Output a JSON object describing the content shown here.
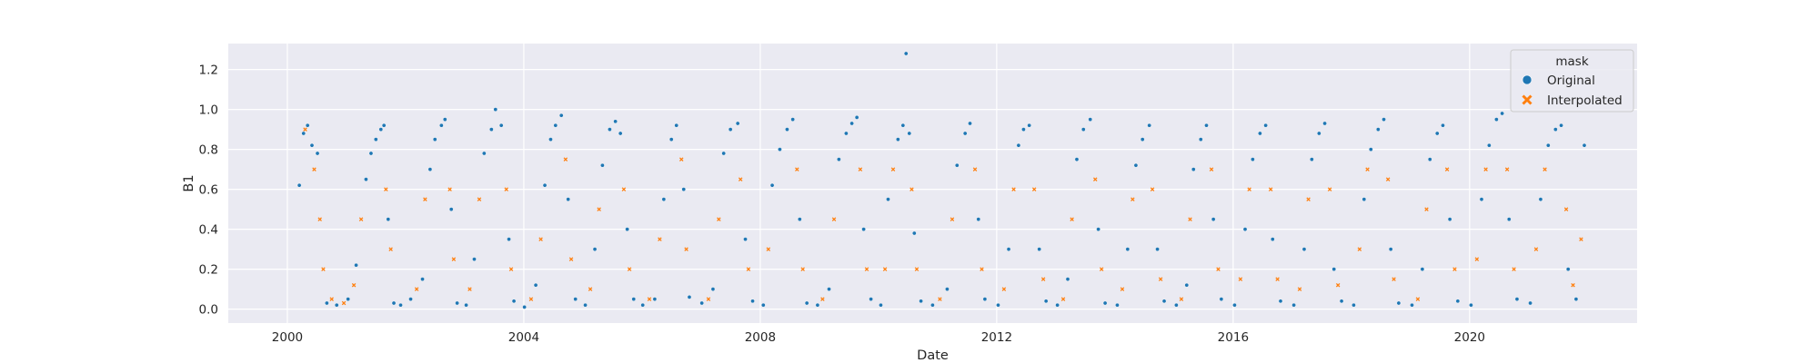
{
  "chart_data": {
    "type": "scatter",
    "xlabel": "Date",
    "ylabel": "B1",
    "x_ticks": [
      "2000",
      "2004",
      "2008",
      "2012",
      "2016",
      "2020"
    ],
    "y_ticks": [
      "0.0",
      "0.2",
      "0.4",
      "0.6",
      "0.8",
      "1.0",
      "1.2"
    ],
    "xlim": [
      "1999-01-01",
      "2022-11-01"
    ],
    "ylim": [
      -0.07,
      1.33
    ],
    "x_range": [
      "2000-03-01",
      "2021-12-15"
    ],
    "grid": true,
    "style": "seaborn-darkgrid",
    "legend": {
      "title": "mask",
      "placement": "top-right",
      "entries": [
        {
          "label": "Original",
          "marker": "circle",
          "color": "#1f77b4"
        },
        {
          "label": "Interpolated",
          "marker": "x",
          "color": "#ff7f0e"
        }
      ]
    },
    "series": [
      {
        "name": "Original",
        "marker": "circle",
        "color": "#1f77b4",
        "description": "seasonal cycle, troughs ~0.02 in winter, peaks ~0.85-0.95 in summer; outlier 1.28 in mid-2010",
        "points": [
          [
            "2000-03-15",
            0.62
          ],
          [
            "2000-04-10",
            0.88
          ],
          [
            "2000-05-05",
            0.92
          ],
          [
            "2000-06-01",
            0.82
          ],
          [
            "2000-07-05",
            0.78
          ],
          [
            "2000-09-01",
            0.03
          ],
          [
            "2000-11-01",
            0.02
          ],
          [
            "2001-01-10",
            0.05
          ],
          [
            "2001-03-01",
            0.22
          ],
          [
            "2001-05-01",
            0.65
          ],
          [
            "2001-06-01",
            0.78
          ],
          [
            "2001-07-01",
            0.85
          ],
          [
            "2001-08-01",
            0.9
          ],
          [
            "2001-08-20",
            0.92
          ],
          [
            "2001-09-15",
            0.45
          ],
          [
            "2001-10-20",
            0.03
          ],
          [
            "2001-12-01",
            0.02
          ],
          [
            "2002-02-01",
            0.05
          ],
          [
            "2002-04-15",
            0.15
          ],
          [
            "2002-06-01",
            0.7
          ],
          [
            "2002-07-01",
            0.85
          ],
          [
            "2002-08-10",
            0.92
          ],
          [
            "2002-09-01",
            0.95
          ],
          [
            "2002-10-10",
            0.5
          ],
          [
            "2002-11-15",
            0.03
          ],
          [
            "2003-01-10",
            0.02
          ],
          [
            "2003-03-01",
            0.25
          ],
          [
            "2003-05-01",
            0.78
          ],
          [
            "2003-06-15",
            0.9
          ],
          [
            "2003-07-10",
            1.0
          ],
          [
            "2003-08-15",
            0.92
          ],
          [
            "2003-10-01",
            0.35
          ],
          [
            "2003-11-01",
            0.04
          ],
          [
            "2004-01-05",
            0.01
          ],
          [
            "2004-03-15",
            0.12
          ],
          [
            "2004-05-10",
            0.62
          ],
          [
            "2004-06-15",
            0.85
          ],
          [
            "2004-07-15",
            0.92
          ],
          [
            "2004-08-20",
            0.97
          ],
          [
            "2004-10-01",
            0.55
          ],
          [
            "2004-11-15",
            0.05
          ],
          [
            "2005-01-15",
            0.02
          ],
          [
            "2005-03-15",
            0.3
          ],
          [
            "2005-05-01",
            0.72
          ],
          [
            "2005-06-15",
            0.9
          ],
          [
            "2005-07-20",
            0.94
          ],
          [
            "2005-08-20",
            0.88
          ],
          [
            "2005-10-01",
            0.4
          ],
          [
            "2005-11-10",
            0.05
          ],
          [
            "2006-01-05",
            0.02
          ],
          [
            "2006-03-20",
            0.05
          ],
          [
            "2006-05-15",
            0.55
          ],
          [
            "2006-07-01",
            0.85
          ],
          [
            "2006-08-01",
            0.92
          ],
          [
            "2006-09-15",
            0.6
          ],
          [
            "2006-10-20",
            0.06
          ],
          [
            "2007-01-05",
            0.03
          ],
          [
            "2007-03-15",
            0.1
          ],
          [
            "2007-05-20",
            0.78
          ],
          [
            "2007-07-01",
            0.9
          ],
          [
            "2007-08-15",
            0.93
          ],
          [
            "2007-10-01",
            0.35
          ],
          [
            "2007-11-15",
            0.04
          ],
          [
            "2008-01-20",
            0.02
          ],
          [
            "2008-03-15",
            0.62
          ],
          [
            "2008-05-01",
            0.8
          ],
          [
            "2008-06-15",
            0.9
          ],
          [
            "2008-07-20",
            0.95
          ],
          [
            "2008-09-01",
            0.45
          ],
          [
            "2008-10-15",
            0.03
          ],
          [
            "2008-12-20",
            0.02
          ],
          [
            "2009-03-01",
            0.1
          ],
          [
            "2009-05-01",
            0.75
          ],
          [
            "2009-06-15",
            0.88
          ],
          [
            "2009-07-20",
            0.93
          ],
          [
            "2009-08-20",
            0.96
          ],
          [
            "2009-10-01",
            0.4
          ],
          [
            "2009-11-15",
            0.05
          ],
          [
            "2010-01-15",
            0.02
          ],
          [
            "2010-03-01",
            0.55
          ],
          [
            "2010-05-01",
            0.85
          ],
          [
            "2010-06-01",
            0.92
          ],
          [
            "2010-06-20",
            1.28
          ],
          [
            "2010-07-10",
            0.88
          ],
          [
            "2010-08-10",
            0.38
          ],
          [
            "2010-09-20",
            0.04
          ],
          [
            "2010-12-01",
            0.02
          ],
          [
            "2011-03-01",
            0.1
          ],
          [
            "2011-05-01",
            0.72
          ],
          [
            "2011-06-20",
            0.88
          ],
          [
            "2011-07-20",
            0.93
          ],
          [
            "2011-09-10",
            0.45
          ],
          [
            "2011-10-20",
            0.05
          ],
          [
            "2012-01-10",
            0.02
          ],
          [
            "2012-03-15",
            0.3
          ],
          [
            "2012-05-15",
            0.82
          ],
          [
            "2012-06-15",
            0.9
          ],
          [
            "2012-07-20",
            0.92
          ],
          [
            "2012-09-20",
            0.3
          ],
          [
            "2012-11-01",
            0.04
          ],
          [
            "2013-01-10",
            0.02
          ],
          [
            "2013-03-15",
            0.15
          ],
          [
            "2013-05-10",
            0.75
          ],
          [
            "2013-06-20",
            0.9
          ],
          [
            "2013-08-01",
            0.95
          ],
          [
            "2013-09-20",
            0.4
          ],
          [
            "2013-11-01",
            0.03
          ],
          [
            "2014-01-15",
            0.02
          ],
          [
            "2014-03-20",
            0.3
          ],
          [
            "2014-05-10",
            0.72
          ],
          [
            "2014-06-20",
            0.85
          ],
          [
            "2014-08-01",
            0.92
          ],
          [
            "2014-09-20",
            0.3
          ],
          [
            "2014-11-01",
            0.04
          ],
          [
            "2015-01-15",
            0.02
          ],
          [
            "2015-03-20",
            0.12
          ],
          [
            "2015-05-01",
            0.7
          ],
          [
            "2015-06-15",
            0.85
          ],
          [
            "2015-07-20",
            0.92
          ],
          [
            "2015-09-01",
            0.45
          ],
          [
            "2015-10-20",
            0.05
          ],
          [
            "2016-01-10",
            0.02
          ],
          [
            "2016-03-15",
            0.4
          ],
          [
            "2016-05-01",
            0.75
          ],
          [
            "2016-06-15",
            0.88
          ],
          [
            "2016-07-20",
            0.92
          ],
          [
            "2016-09-01",
            0.35
          ],
          [
            "2016-10-20",
            0.04
          ],
          [
            "2017-01-10",
            0.02
          ],
          [
            "2017-03-15",
            0.3
          ],
          [
            "2017-05-01",
            0.75
          ],
          [
            "2017-06-15",
            0.88
          ],
          [
            "2017-07-20",
            0.93
          ],
          [
            "2017-09-15",
            0.2
          ],
          [
            "2017-11-01",
            0.04
          ],
          [
            "2018-01-15",
            0.02
          ],
          [
            "2018-03-20",
            0.55
          ],
          [
            "2018-05-01",
            0.8
          ],
          [
            "2018-06-15",
            0.9
          ],
          [
            "2018-07-20",
            0.95
          ],
          [
            "2018-09-01",
            0.3
          ],
          [
            "2018-10-20",
            0.03
          ],
          [
            "2019-01-10",
            0.02
          ],
          [
            "2019-03-15",
            0.2
          ],
          [
            "2019-05-01",
            0.75
          ],
          [
            "2019-06-15",
            0.88
          ],
          [
            "2019-07-20",
            0.92
          ],
          [
            "2019-09-01",
            0.45
          ],
          [
            "2019-10-20",
            0.04
          ],
          [
            "2020-01-10",
            0.02
          ],
          [
            "2020-03-15",
            0.55
          ],
          [
            "2020-05-01",
            0.82
          ],
          [
            "2020-06-15",
            0.95
          ],
          [
            "2020-07-20",
            0.98
          ],
          [
            "2020-09-01",
            0.45
          ],
          [
            "2020-10-20",
            0.05
          ],
          [
            "2021-01-10",
            0.03
          ],
          [
            "2021-03-15",
            0.55
          ],
          [
            "2021-05-01",
            0.82
          ],
          [
            "2021-06-15",
            0.9
          ],
          [
            "2021-07-20",
            0.92
          ],
          [
            "2021-09-01",
            0.2
          ],
          [
            "2021-10-20",
            0.05
          ],
          [
            "2021-12-10",
            0.82
          ]
        ]
      },
      {
        "name": "Interpolated",
        "marker": "x",
        "color": "#ff7f0e",
        "description": "gap-filled values following the same seasonal cycle",
        "points": [
          [
            "2000-04-20",
            0.9
          ],
          [
            "2000-06-15",
            0.7
          ],
          [
            "2000-07-20",
            0.45
          ],
          [
            "2000-08-10",
            0.2
          ],
          [
            "2000-10-01",
            0.05
          ],
          [
            "2000-12-15",
            0.03
          ],
          [
            "2001-02-15",
            0.12
          ],
          [
            "2001-04-01",
            0.45
          ],
          [
            "2001-09-01",
            0.6
          ],
          [
            "2001-10-01",
            0.3
          ],
          [
            "2002-03-10",
            0.1
          ],
          [
            "2002-05-01",
            0.55
          ],
          [
            "2002-10-01",
            0.6
          ],
          [
            "2002-10-25",
            0.25
          ],
          [
            "2003-02-01",
            0.1
          ],
          [
            "2003-04-01",
            0.55
          ],
          [
            "2003-09-15",
            0.6
          ],
          [
            "2003-10-15",
            0.2
          ],
          [
            "2004-02-15",
            0.05
          ],
          [
            "2004-04-15",
            0.35
          ],
          [
            "2004-09-15",
            0.75
          ],
          [
            "2004-10-20",
            0.25
          ],
          [
            "2005-02-15",
            0.1
          ],
          [
            "2005-04-10",
            0.5
          ],
          [
            "2005-09-10",
            0.6
          ],
          [
            "2005-10-15",
            0.2
          ],
          [
            "2006-02-15",
            0.05
          ],
          [
            "2006-04-20",
            0.35
          ],
          [
            "2006-09-01",
            0.75
          ],
          [
            "2006-10-01",
            0.3
          ],
          [
            "2007-02-15",
            0.05
          ],
          [
            "2007-04-20",
            0.45
          ],
          [
            "2007-09-01",
            0.65
          ],
          [
            "2007-10-20",
            0.2
          ],
          [
            "2008-02-20",
            0.3
          ],
          [
            "2008-08-15",
            0.7
          ],
          [
            "2008-09-20",
            0.2
          ],
          [
            "2009-01-20",
            0.05
          ],
          [
            "2009-04-01",
            0.45
          ],
          [
            "2009-09-10",
            0.7
          ],
          [
            "2009-10-20",
            0.2
          ],
          [
            "2010-02-10",
            0.2
          ],
          [
            "2010-04-01",
            0.7
          ],
          [
            "2010-07-25",
            0.6
          ],
          [
            "2010-08-25",
            0.2
          ],
          [
            "2011-01-15",
            0.05
          ],
          [
            "2011-04-01",
            0.45
          ],
          [
            "2011-08-20",
            0.7
          ],
          [
            "2011-10-01",
            0.2
          ],
          [
            "2012-02-15",
            0.1
          ],
          [
            "2012-04-15",
            0.6
          ],
          [
            "2012-08-20",
            0.6
          ],
          [
            "2012-10-15",
            0.15
          ],
          [
            "2013-02-15",
            0.05
          ],
          [
            "2013-04-10",
            0.45
          ],
          [
            "2013-09-01",
            0.65
          ],
          [
            "2013-10-10",
            0.2
          ],
          [
            "2014-02-15",
            0.1
          ],
          [
            "2014-04-20",
            0.55
          ],
          [
            "2014-08-20",
            0.6
          ],
          [
            "2014-10-10",
            0.15
          ],
          [
            "2015-02-15",
            0.05
          ],
          [
            "2015-04-10",
            0.45
          ],
          [
            "2015-08-20",
            0.7
          ],
          [
            "2015-10-01",
            0.2
          ],
          [
            "2016-02-15",
            0.15
          ],
          [
            "2016-04-10",
            0.6
          ],
          [
            "2016-08-20",
            0.6
          ],
          [
            "2016-10-01",
            0.15
          ],
          [
            "2017-02-15",
            0.1
          ],
          [
            "2017-04-10",
            0.55
          ],
          [
            "2017-08-20",
            0.6
          ],
          [
            "2017-10-10",
            0.12
          ],
          [
            "2018-02-20",
            0.3
          ],
          [
            "2018-04-10",
            0.7
          ],
          [
            "2018-08-15",
            0.65
          ],
          [
            "2018-09-20",
            0.15
          ],
          [
            "2019-02-15",
            0.05
          ],
          [
            "2019-04-10",
            0.5
          ],
          [
            "2019-08-15",
            0.7
          ],
          [
            "2019-10-01",
            0.2
          ],
          [
            "2020-02-15",
            0.25
          ],
          [
            "2020-04-10",
            0.7
          ],
          [
            "2020-08-20",
            0.7
          ],
          [
            "2020-10-01",
            0.2
          ],
          [
            "2021-02-15",
            0.3
          ],
          [
            "2021-04-10",
            0.7
          ],
          [
            "2021-08-20",
            0.5
          ],
          [
            "2021-10-01",
            0.12
          ],
          [
            "2021-11-20",
            0.35
          ]
        ]
      }
    ]
  }
}
